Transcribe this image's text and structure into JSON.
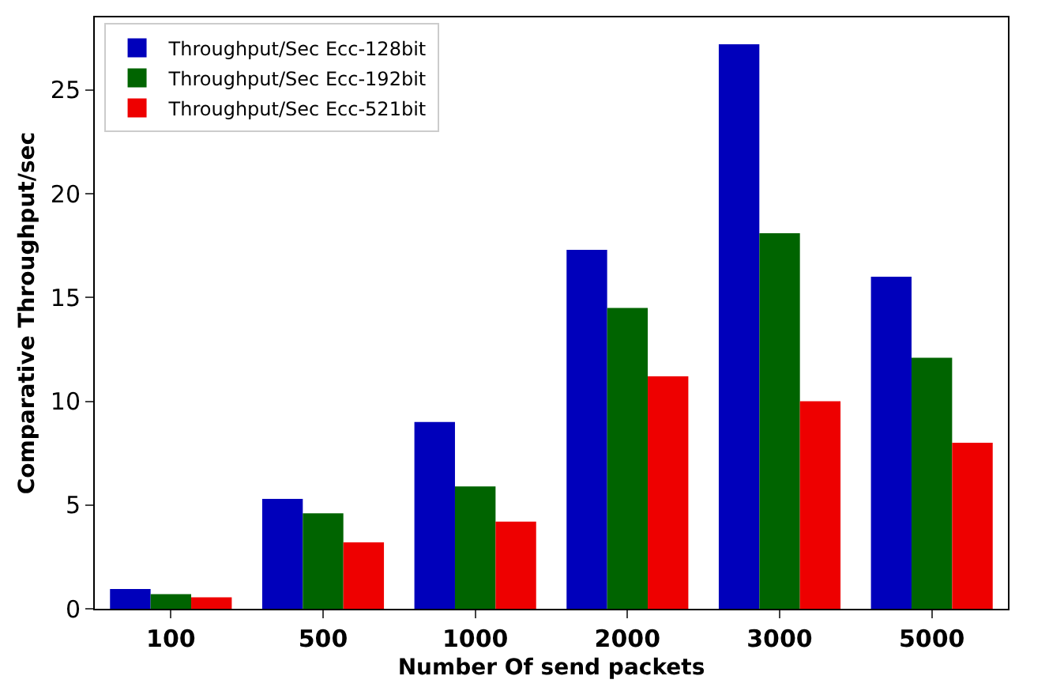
{
  "chart_data": {
    "type": "bar",
    "xlabel": "Number Of send packets",
    "ylabel": "Comparative Throughput/sec",
    "categories": [
      "100",
      "500",
      "1000",
      "2000",
      "3000",
      "5000"
    ],
    "series": [
      {
        "name": "Throughput/Sec Ecc-128bit",
        "color": "#0000bb",
        "values": [
          0.95,
          5.3,
          9.0,
          17.3,
          27.2,
          16.0
        ]
      },
      {
        "name": "Throughput/Sec Ecc-192bit",
        "color": "#006400",
        "values": [
          0.7,
          4.6,
          5.9,
          14.5,
          18.1,
          12.1
        ]
      },
      {
        "name": "Throughput/Sec Ecc-521bit",
        "color": "#ee0000",
        "values": [
          0.55,
          3.2,
          4.2,
          11.2,
          10.0,
          8.0
        ]
      }
    ],
    "ylim": [
      0,
      28.5
    ],
    "yticks": [
      0,
      5,
      10,
      15,
      20,
      25
    ],
    "grid": false,
    "legend": "top left"
  }
}
